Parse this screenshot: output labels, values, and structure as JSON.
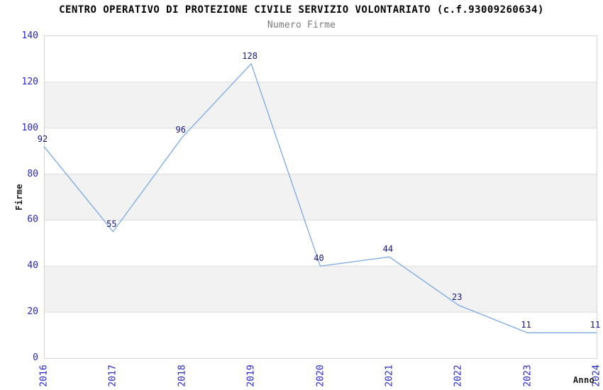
{
  "chart_data": {
    "type": "line",
    "title": "CENTRO OPERATIVO DI PROTEZIONE CIVILE SERVIZIO VOLONTARIATO (c.f.93009260634)",
    "subtitle": "Numero Firme",
    "xlabel": "Anno",
    "ylabel": "Firme",
    "x": [
      "2016",
      "2017",
      "2018",
      "2019",
      "2020",
      "2021",
      "2022",
      "2023",
      "2024"
    ],
    "series": [
      {
        "name": "Numero Firme",
        "values": [
          92,
          55,
          96,
          128,
          40,
          44,
          23,
          11,
          11
        ]
      }
    ],
    "ylim": [
      0,
      140
    ],
    "ytick_step": 20,
    "yticks": [
      0,
      20,
      40,
      60,
      80,
      100,
      120,
      140
    ],
    "grid": "alternating-horizontal-bands",
    "legend": "none",
    "data_labels_visible": true,
    "colors": {
      "line": "#7aaae8",
      "band": "#f2f2f2",
      "gridline": "#dcdcdc",
      "plot_border": "#d3d3d3",
      "tick_label": "#2626cc",
      "data_label": "#161685",
      "title": "#000000",
      "subtitle": "#7a7a7a",
      "background": "#ffffff"
    }
  }
}
